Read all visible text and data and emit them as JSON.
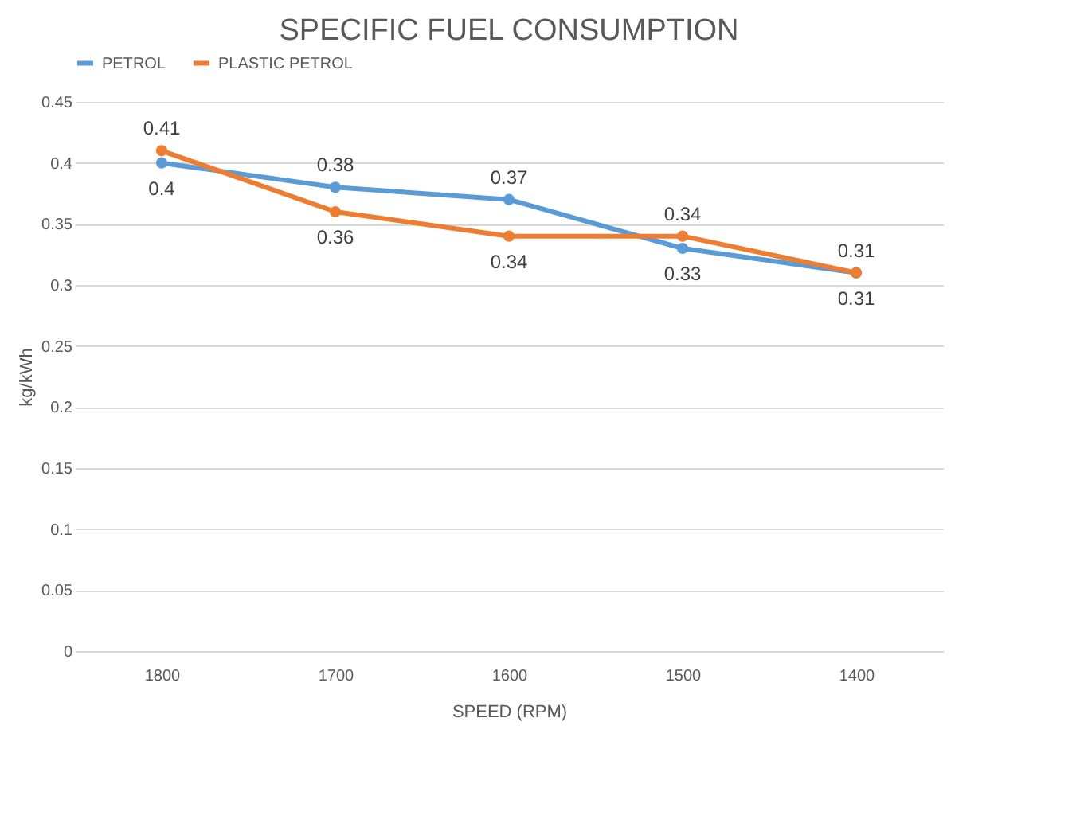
{
  "chart_data": {
    "type": "line",
    "title": "SPECIFIC FUEL CONSUMPTION",
    "xlabel": "SPEED (RPM)",
    "ylabel": "kg/kWh",
    "categories": [
      "1800",
      "1700",
      "1600",
      "1500",
      "1400"
    ],
    "series": [
      {
        "name": "PETROL",
        "color": "#5b9bd5",
        "values": [
          0.4,
          0.38,
          0.37,
          0.33,
          0.31
        ]
      },
      {
        "name": "PLASTIC PETROL",
        "color": "#ed7d31",
        "values": [
          0.41,
          0.36,
          0.34,
          0.34,
          0.31
        ]
      }
    ],
    "ylim": [
      0,
      0.45
    ],
    "yticks": [
      0,
      0.05,
      0.1,
      0.15,
      0.2,
      0.25,
      0.3,
      0.35,
      0.4,
      0.45
    ],
    "grid": "y",
    "legend": "top",
    "marker": "circle",
    "line_style": "solid",
    "data_labels": true
  }
}
